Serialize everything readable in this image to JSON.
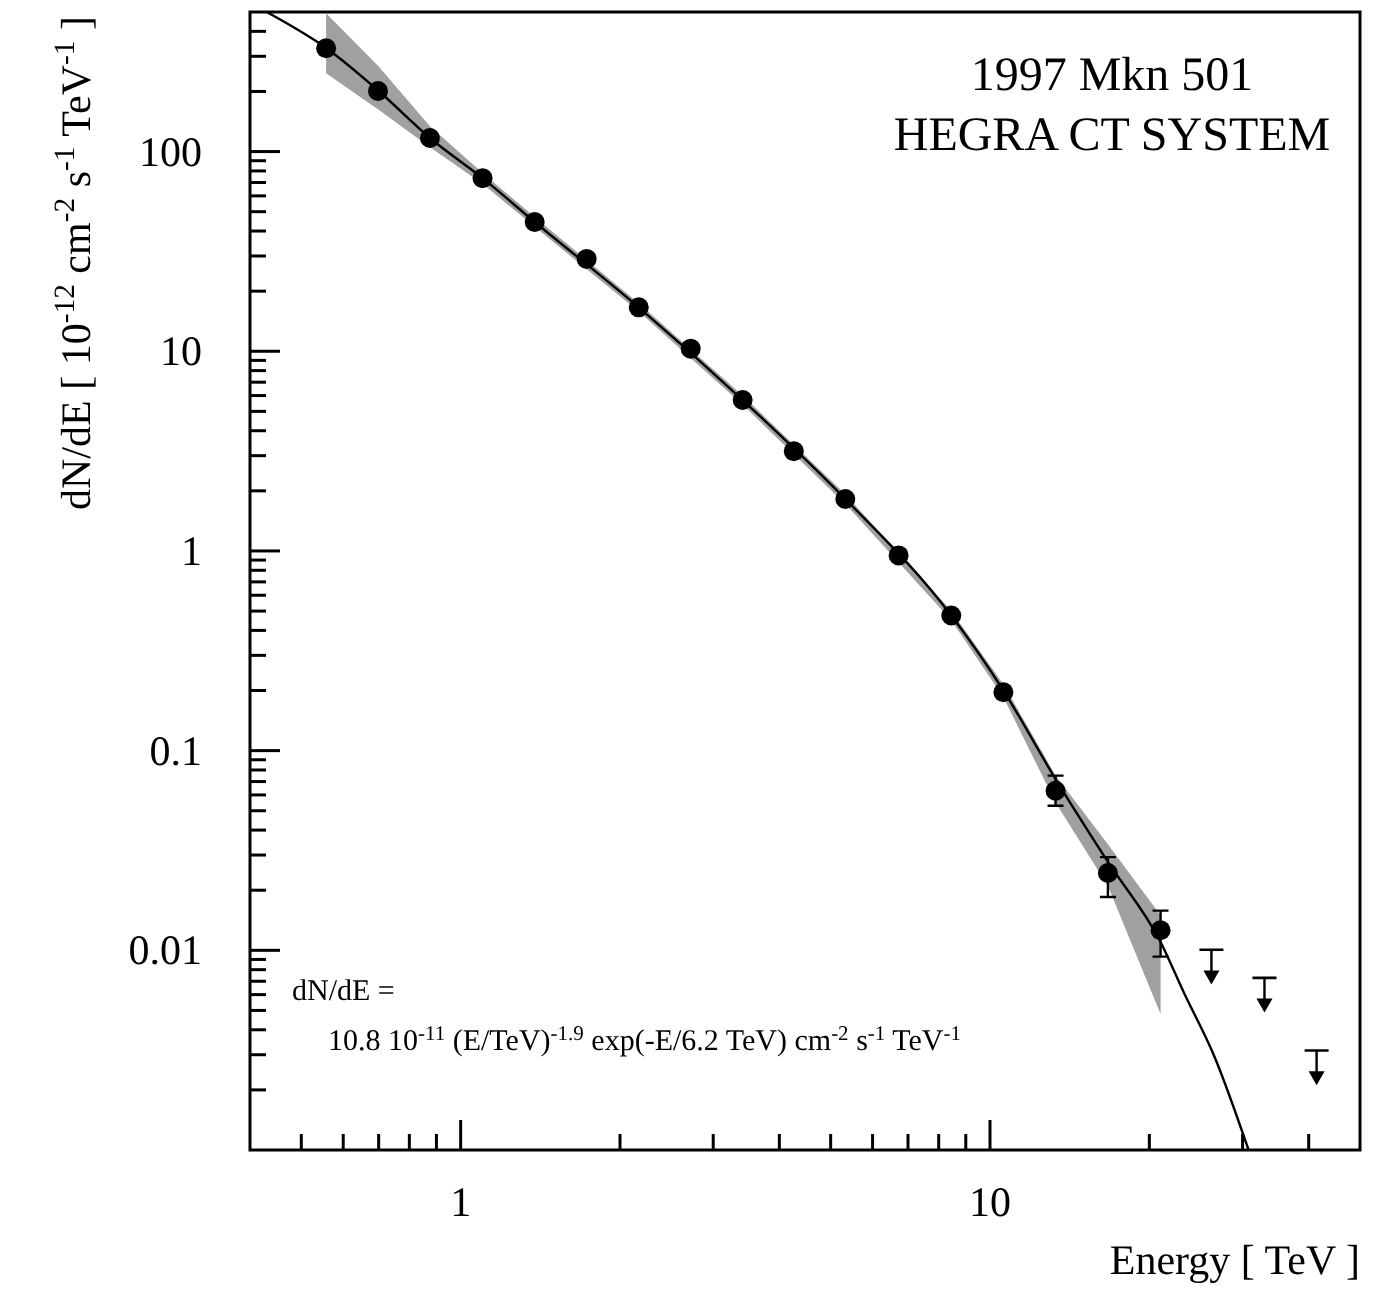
{
  "chart_data": {
    "type": "scatter",
    "title": "1997 Mkn 501",
    "subtitle": "HEGRA CT SYSTEM",
    "xlabel": "Energy [ TeV ]",
    "ylabel": "dN/dE [ 10$^{-12}$ cm$^{-2}$ s$^{-1}$ TeV$^{-1}$ ]",
    "annotations": [
      "dN/dE =",
      "10.8 10$^{-11}$ (E/TeV)$^{-1.9}$ exp(-E/6.2 TeV) cm$^{-2}$ s$^{-1}$ TeV$^{-1}$"
    ],
    "log": "xy",
    "xlim": [
      0.4,
      50
    ],
    "ylim": [
      0.001,
      500
    ],
    "xticks": [
      {
        "value": 0.5,
        "label": null
      },
      {
        "value": 0.6,
        "label": null
      },
      {
        "value": 0.7,
        "label": null
      },
      {
        "value": 0.8,
        "label": null
      },
      {
        "value": 0.9,
        "label": null
      },
      1,
      {
        "value": 2,
        "label": null
      },
      {
        "value": 3,
        "label": null
      },
      {
        "value": 4,
        "label": null
      },
      {
        "value": 5,
        "label": null
      },
      {
        "value": 6,
        "label": null
      },
      {
        "value": 7,
        "label": null
      },
      {
        "value": 8,
        "label": null
      },
      {
        "value": 9,
        "label": null
      },
      10,
      {
        "value": 20,
        "label": null
      },
      {
        "value": 30,
        "label": null
      },
      {
        "value": 40,
        "label": null
      }
    ],
    "yticks": [
      {
        "value": 0.002,
        "label": null
      },
      {
        "value": 0.003,
        "label": null
      },
      {
        "value": 0.004,
        "label": null
      },
      {
        "value": 0.005,
        "label": null
      },
      {
        "value": 0.006,
        "label": null
      },
      {
        "value": 0.007,
        "label": null
      },
      {
        "value": 0.008,
        "label": null
      },
      {
        "value": 0.009,
        "label": null
      },
      0.01,
      {
        "value": 0.02,
        "label": null
      },
      {
        "value": 0.03,
        "label": null
      },
      {
        "value": 0.04,
        "label": null
      },
      {
        "value": 0.05,
        "label": null
      },
      {
        "value": 0.06,
        "label": null
      },
      {
        "value": 0.07,
        "label": null
      },
      {
        "value": 0.08,
        "label": null
      },
      {
        "value": 0.09,
        "label": null
      },
      0.1,
      {
        "value": 0.2,
        "label": null
      },
      {
        "value": 0.3,
        "label": null
      },
      {
        "value": 0.4,
        "label": null
      },
      {
        "value": 0.5,
        "label": null
      },
      {
        "value": 0.6,
        "label": null
      },
      {
        "value": 0.7,
        "label": null
      },
      {
        "value": 0.8,
        "label": null
      },
      {
        "value": 0.9,
        "label": null
      },
      1,
      {
        "value": 2,
        "label": null
      },
      {
        "value": 3,
        "label": null
      },
      {
        "value": 4,
        "label": null
      },
      {
        "value": 5,
        "label": null
      },
      {
        "value": 6,
        "label": null
      },
      {
        "value": 7,
        "label": null
      },
      {
        "value": 8,
        "label": null
      },
      {
        "value": 9,
        "label": null
      },
      10,
      {
        "value": 20,
        "label": null
      },
      {
        "value": 30,
        "label": null
      },
      {
        "value": 40,
        "label": null
      },
      {
        "value": 50,
        "label": null
      },
      {
        "value": 60,
        "label": null
      },
      {
        "value": 70,
        "label": null
      },
      {
        "value": 80,
        "label": null
      },
      {
        "value": 90,
        "label": null
      },
      100,
      {
        "value": 200,
        "label": null
      },
      {
        "value": 300,
        "label": null
      },
      {
        "value": 400,
        "label": null
      }
    ],
    "series": [
      {
        "type": "line",
        "color": "#000000",
        "line_style": "solid",
        "x": [
          0.43,
          0.557,
          0.7,
          0.875,
          1.1,
          1.38,
          2.17,
          3.41,
          5.33,
          8.45,
          10.6,
          13.3,
          16.7,
          21.0,
          23.2,
          26.6,
          30.8
        ],
        "values": [
          500,
          330,
          201,
          117,
          73.6,
          44.4,
          16.6,
          5.7,
          1.82,
          0.475,
          0.2,
          0.072,
          0.0277,
          0.011,
          0.0062,
          0.0029,
          0.001
        ],
        "lower": [
          null,
          247,
          162,
          105,
          69,
          42,
          15.8,
          5.4,
          1.72,
          0.45,
          0.185,
          0.055,
          0.021,
          0.0048,
          null,
          null,
          null
        ],
        "upper": [
          null,
          493,
          267,
          134,
          78,
          47,
          17.4,
          6.0,
          1.92,
          0.5,
          0.215,
          0.075,
          0.034,
          0.015,
          null,
          null,
          null
        ]
      },
      {
        "color": "#000000",
        "marker": "circle",
        "x": [
          0.557,
          0.698,
          0.875,
          1.1,
          1.38,
          1.73,
          2.17,
          2.72,
          3.41,
          4.26,
          5.33,
          6.72,
          8.45,
          10.6,
          13.3,
          16.7,
          21.0
        ],
        "values": [
          329,
          201,
          117,
          73.6,
          44.4,
          29,
          16.6,
          10.3,
          5.7,
          3.16,
          1.82,
          0.95,
          0.475,
          0.196,
          0.063,
          0.0244,
          0.0126
        ],
        "errors": [
          null,
          null,
          null,
          null,
          null,
          null,
          null,
          null,
          null,
          null,
          null,
          null,
          null,
          null,
          [
            0.053,
            0.075
          ],
          [
            0.0185,
            0.0293
          ],
          [
            0.0093,
            0.0158
          ]
        ]
      },
      {
        "color": "#000000",
        "marker": "triangle",
        "x": [
          26.2,
          33.0,
          41.4
        ],
        "values": [
          0.0083,
          0.006,
          0.0026
        ]
      }
    ]
  }
}
